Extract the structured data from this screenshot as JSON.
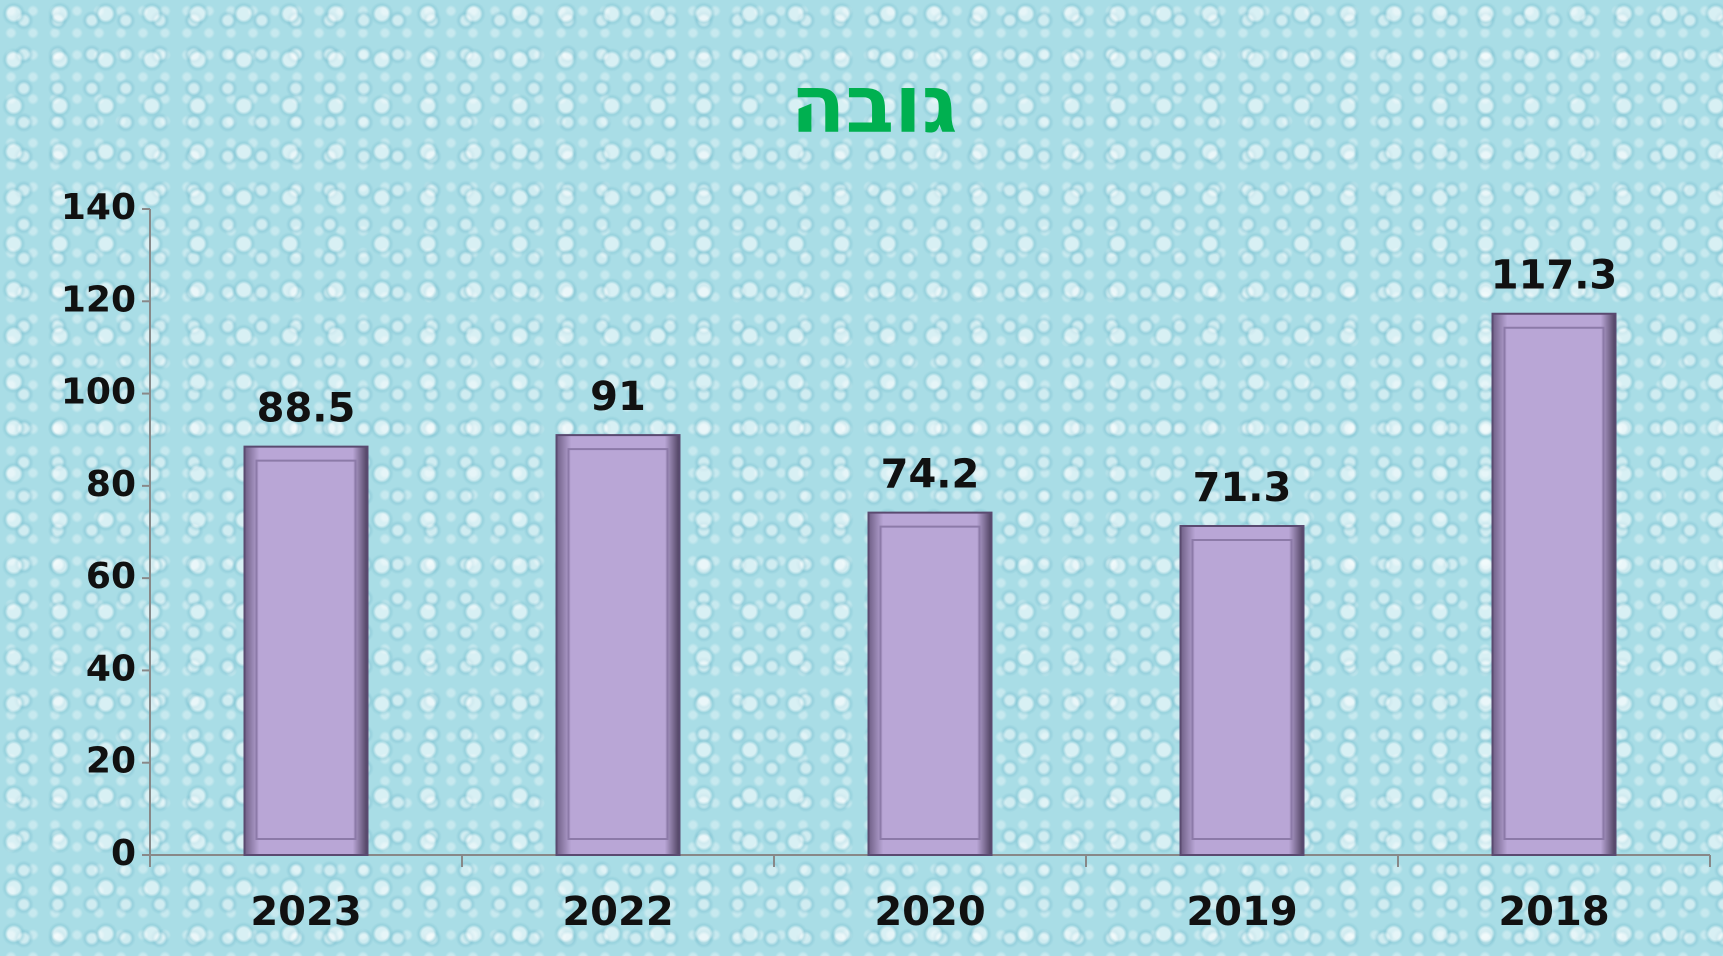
{
  "chart_data": {
    "type": "bar",
    "title": "גובה",
    "categories": [
      "2023",
      "2022",
      "2020",
      "2019",
      "2018"
    ],
    "values": [
      88.5,
      91,
      74.2,
      71.3,
      117.3
    ],
    "color": "#b9a6d6",
    "title_color": "#00b050",
    "ylim": [
      0,
      140
    ],
    "yticks": [
      0,
      20,
      40,
      60,
      80,
      100,
      120,
      140
    ]
  }
}
